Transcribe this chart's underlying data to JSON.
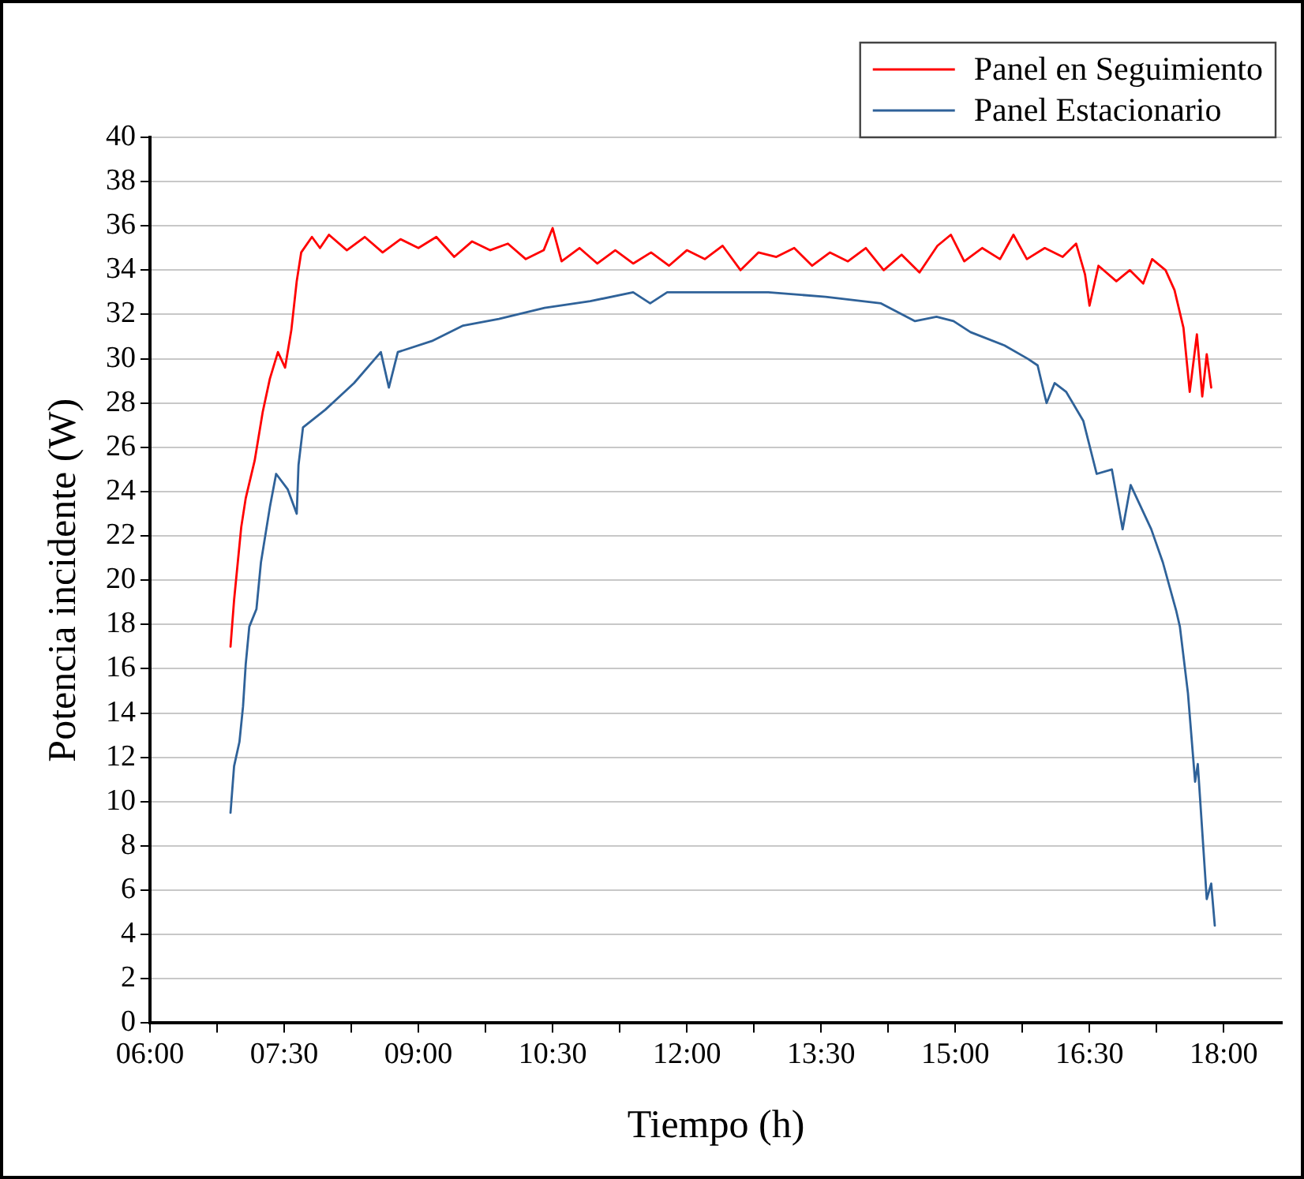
{
  "chart_data": {
    "type": "line",
    "xlabel": "Tiempo (h)",
    "ylabel": "Potencia incidente (W)",
    "xlim": [
      6,
      18.65
    ],
    "ylim": [
      0,
      40
    ],
    "xticks": [
      {
        "value": 6,
        "label": "06:00"
      },
      {
        "value": 6.75,
        "label": null
      },
      {
        "value": 7.5,
        "label": "07:30"
      },
      {
        "value": 8.25,
        "label": null
      },
      {
        "value": 9,
        "label": "09:00"
      },
      {
        "value": 9.75,
        "label": null
      },
      {
        "value": 10.5,
        "label": "10:30"
      },
      {
        "value": 11.25,
        "label": null
      },
      {
        "value": 12,
        "label": "12:00"
      },
      {
        "value": 12.75,
        "label": null
      },
      {
        "value": 13.5,
        "label": "13:30"
      },
      {
        "value": 14.25,
        "label": null
      },
      {
        "value": 15,
        "label": "15:00"
      },
      {
        "value": 15.75,
        "label": null
      },
      {
        "value": 16.5,
        "label": "16:30"
      },
      {
        "value": 17.25,
        "label": null
      },
      {
        "value": 18,
        "label": "18:00"
      }
    ],
    "yticks": [
      0,
      2,
      4,
      6,
      8,
      10,
      12,
      14,
      16,
      18,
      20,
      22,
      24,
      26,
      28,
      30,
      32,
      34,
      36,
      38,
      40
    ],
    "grid": "y",
    "legend": "top right",
    "marker": "none",
    "line_style": "solid",
    "series": [
      {
        "name": "Panel en Seguimiento",
        "color": "#ff0000",
        "x": [
          6.9,
          6.94,
          7.02,
          7.07,
          7.17,
          7.26,
          7.34,
          7.43,
          7.51,
          7.58,
          7.64,
          7.69,
          7.81,
          7.9,
          8.0,
          8.2,
          8.4,
          8.6,
          8.8,
          9.0,
          9.2,
          9.4,
          9.6,
          9.8,
          10.0,
          10.2,
          10.4,
          10.5,
          10.6,
          10.8,
          11.0,
          11.2,
          11.4,
          11.6,
          11.8,
          12.0,
          12.2,
          12.4,
          12.6,
          12.8,
          13.0,
          13.2,
          13.4,
          13.6,
          13.8,
          14.0,
          14.2,
          14.4,
          14.6,
          14.8,
          14.95,
          15.1,
          15.3,
          15.5,
          15.65,
          15.8,
          16.0,
          16.2,
          16.35,
          16.45,
          16.5,
          16.6,
          16.8,
          16.95,
          17.1,
          17.2,
          17.35,
          17.45,
          17.55,
          17.62,
          17.7,
          17.76,
          17.81,
          17.86
        ],
        "values": [
          17.0,
          19.1,
          22.4,
          23.7,
          25.4,
          27.6,
          29.1,
          30.3,
          29.6,
          31.3,
          33.5,
          34.8,
          35.5,
          35.0,
          35.6,
          34.9,
          35.5,
          34.8,
          35.4,
          35.0,
          35.5,
          34.6,
          35.3,
          34.9,
          35.2,
          34.5,
          34.9,
          35.9,
          34.4,
          35.0,
          34.3,
          34.9,
          34.3,
          34.8,
          34.2,
          34.9,
          34.5,
          35.1,
          34.0,
          34.8,
          34.6,
          35.0,
          34.2,
          34.8,
          34.4,
          35.0,
          34.0,
          34.7,
          33.9,
          35.1,
          35.6,
          34.4,
          35.0,
          34.5,
          35.6,
          34.5,
          35.0,
          34.6,
          35.2,
          33.8,
          32.4,
          34.2,
          33.5,
          34.0,
          33.4,
          34.5,
          34.0,
          33.1,
          31.4,
          28.5,
          31.1,
          28.3,
          30.2,
          28.7
        ]
      },
      {
        "name": "Panel Estacionario",
        "color": "#2f6299",
        "x": [
          6.9,
          6.94,
          7.0,
          7.04,
          7.07,
          7.11,
          7.19,
          7.24,
          7.34,
          7.41,
          7.54,
          7.64,
          7.66,
          7.71,
          7.96,
          8.28,
          8.58,
          8.67,
          8.77,
          9.15,
          9.5,
          9.9,
          10.41,
          10.92,
          11.4,
          11.59,
          11.78,
          12.42,
          12.91,
          13.55,
          14.17,
          14.55,
          14.79,
          14.98,
          15.17,
          15.55,
          15.81,
          15.92,
          16.02,
          16.11,
          16.24,
          16.43,
          16.58,
          16.75,
          16.87,
          16.96,
          17.19,
          17.32,
          17.47,
          17.51,
          17.6,
          17.68,
          17.71,
          17.81,
          17.86,
          17.9
        ],
        "values": [
          9.5,
          11.6,
          12.7,
          14.3,
          16.2,
          17.9,
          18.7,
          20.8,
          23.3,
          24.8,
          24.1,
          23.0,
          25.2,
          26.9,
          27.7,
          28.9,
          30.3,
          28.7,
          30.3,
          30.8,
          31.5,
          31.8,
          32.3,
          32.6,
          33.0,
          32.5,
          33.0,
          33.0,
          33.0,
          32.8,
          32.5,
          31.7,
          31.9,
          31.7,
          31.2,
          30.6,
          30.0,
          29.7,
          28.0,
          28.9,
          28.5,
          27.2,
          24.8,
          25.0,
          22.3,
          24.3,
          22.3,
          20.8,
          18.6,
          17.9,
          14.9,
          10.9,
          11.7,
          5.6,
          6.3,
          4.4
        ]
      }
    ]
  }
}
